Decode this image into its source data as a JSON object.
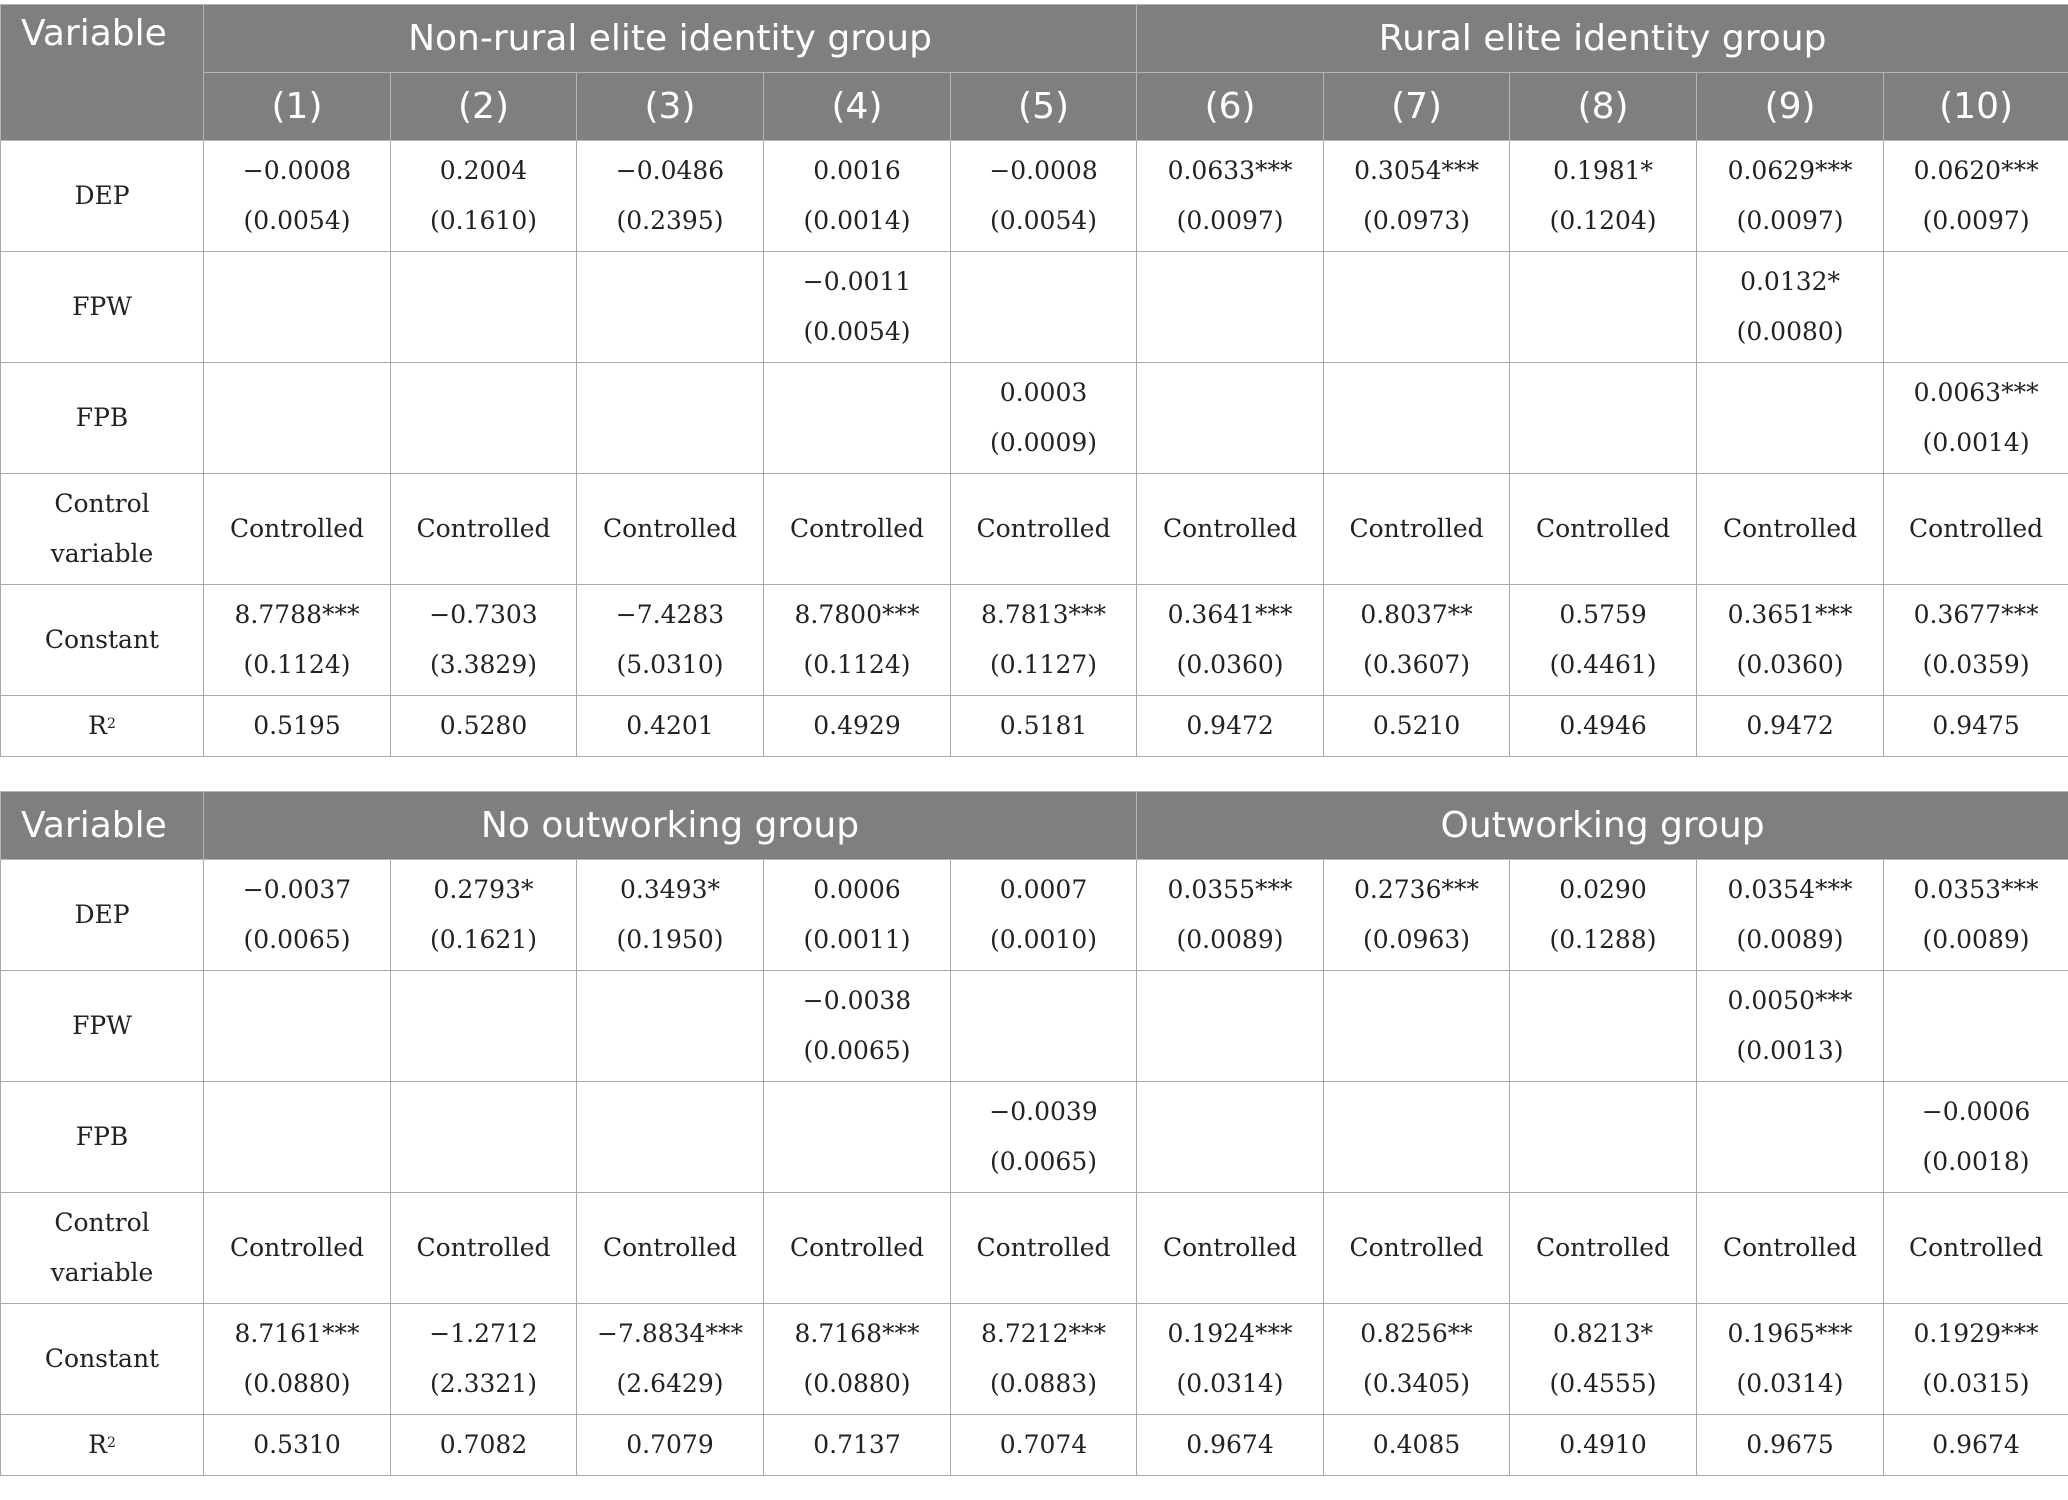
{
  "table1": {
    "header": {
      "variable": "Variable",
      "group_left": "Non-rural elite identity group",
      "group_right": "Rural elite identity group",
      "cols": [
        "(1)",
        "(2)",
        "(3)",
        "(4)",
        "(5)",
        "(6)",
        "(7)",
        "(8)",
        "(9)",
        "(10)"
      ]
    },
    "rows": [
      {
        "label_1": "DEP",
        "label_2": "",
        "c": [
          [
            "−0.0008",
            "(0.0054)"
          ],
          [
            "0.2004",
            "(0.1610)"
          ],
          [
            "−0.0486",
            "(0.2395)"
          ],
          [
            "0.0016",
            "(0.0014)"
          ],
          [
            "−0.0008",
            "(0.0054)"
          ],
          [
            "0.0633***",
            "(0.0097)"
          ],
          [
            "0.3054***",
            "(0.0973)"
          ],
          [
            "0.1981*",
            "(0.1204)"
          ],
          [
            "0.0629***",
            "(0.0097)"
          ],
          [
            "0.0620***",
            "(0.0097)"
          ]
        ]
      },
      {
        "label_1": "FPW",
        "label_2": "",
        "c": [
          [
            "",
            ""
          ],
          [
            "",
            ""
          ],
          [
            "",
            ""
          ],
          [
            "−0.0011",
            "(0.0054)"
          ],
          [
            "",
            ""
          ],
          [
            "",
            ""
          ],
          [
            "",
            ""
          ],
          [
            "",
            ""
          ],
          [
            "0.0132*",
            "(0.0080)"
          ],
          [
            "",
            ""
          ]
        ]
      },
      {
        "label_1": "FPB",
        "label_2": "",
        "c": [
          [
            "",
            ""
          ],
          [
            "",
            ""
          ],
          [
            "",
            ""
          ],
          [
            "",
            ""
          ],
          [
            "0.0003",
            "(0.0009)"
          ],
          [
            "",
            ""
          ],
          [
            "",
            ""
          ],
          [
            "",
            ""
          ],
          [
            "",
            ""
          ],
          [
            "0.0063***",
            "(0.0014)"
          ]
        ]
      },
      {
        "label_1": "Control",
        "label_2": "variable",
        "c": [
          [
            "Controlled",
            ""
          ],
          [
            "Controlled",
            ""
          ],
          [
            "Controlled",
            ""
          ],
          [
            "Controlled",
            ""
          ],
          [
            "Controlled",
            ""
          ],
          [
            "Controlled",
            ""
          ],
          [
            "Controlled",
            ""
          ],
          [
            "Controlled",
            ""
          ],
          [
            "Controlled",
            ""
          ],
          [
            "Controlled",
            ""
          ]
        ]
      },
      {
        "label_1": "Constant",
        "label_2": "",
        "c": [
          [
            "8.7788***",
            "(0.1124)"
          ],
          [
            "−0.7303",
            "(3.3829)"
          ],
          [
            "−7.4283",
            "(5.0310)"
          ],
          [
            "8.7800***",
            "(0.1124)"
          ],
          [
            "8.7813***",
            "(0.1127)"
          ],
          [
            "0.3641***",
            "(0.0360)"
          ],
          [
            "0.8037**",
            "(0.3607)"
          ],
          [
            "0.5759",
            "(0.4461)"
          ],
          [
            "0.3651***",
            "(0.0360)"
          ],
          [
            "0.3677***",
            "(0.0359)"
          ]
        ]
      }
    ],
    "r2": {
      "label": "R",
      "sup": "2",
      "values": [
        "0.5195",
        "0.5280",
        "0.4201",
        "0.4929",
        "0.5181",
        "0.9472",
        "0.5210",
        "0.4946",
        "0.9472",
        "0.9475"
      ]
    }
  },
  "table2": {
    "header": {
      "variable": "Variable",
      "group_left": "No outworking group",
      "group_right": "Outworking group"
    },
    "rows": [
      {
        "label_1": "DEP",
        "label_2": "",
        "c": [
          [
            "−0.0037",
            "(0.0065)"
          ],
          [
            "0.2793*",
            "(0.1621)"
          ],
          [
            "0.3493*",
            "(0.1950)"
          ],
          [
            "0.0006",
            "(0.0011)"
          ],
          [
            "0.0007",
            "(0.0010)"
          ],
          [
            "0.0355***",
            "(0.0089)"
          ],
          [
            "0.2736***",
            "(0.0963)"
          ],
          [
            "0.0290",
            "(0.1288)"
          ],
          [
            "0.0354***",
            "(0.0089)"
          ],
          [
            "0.0353***",
            "(0.0089)"
          ]
        ]
      },
      {
        "label_1": "FPW",
        "label_2": "",
        "c": [
          [
            "",
            ""
          ],
          [
            "",
            ""
          ],
          [
            "",
            ""
          ],
          [
            "−0.0038",
            "(0.0065)"
          ],
          [
            "",
            ""
          ],
          [
            "",
            ""
          ],
          [
            "",
            ""
          ],
          [
            "",
            ""
          ],
          [
            "0.0050***",
            "(0.0013)"
          ],
          [
            "",
            ""
          ]
        ]
      },
      {
        "label_1": "FPB",
        "label_2": "",
        "c": [
          [
            "",
            ""
          ],
          [
            "",
            ""
          ],
          [
            "",
            ""
          ],
          [
            "",
            ""
          ],
          [
            "−0.0039",
            "(0.0065)"
          ],
          [
            "",
            ""
          ],
          [
            "",
            ""
          ],
          [
            "",
            ""
          ],
          [
            "",
            ""
          ],
          [
            "−0.0006",
            "(0.0018)"
          ]
        ]
      },
      {
        "label_1": "Control",
        "label_2": "variable",
        "c": [
          [
            "Controlled",
            ""
          ],
          [
            "Controlled",
            ""
          ],
          [
            "Controlled",
            ""
          ],
          [
            "Controlled",
            ""
          ],
          [
            "Controlled",
            ""
          ],
          [
            "Controlled",
            ""
          ],
          [
            "Controlled",
            ""
          ],
          [
            "Controlled",
            ""
          ],
          [
            "Controlled",
            ""
          ],
          [
            "Controlled",
            ""
          ]
        ]
      },
      {
        "label_1": "Constant",
        "label_2": "",
        "c": [
          [
            "8.7161***",
            "(0.0880)"
          ],
          [
            "−1.2712",
            "(2.3321)"
          ],
          [
            "−7.8834***",
            "(2.6429)"
          ],
          [
            "8.7168***",
            "(0.0880)"
          ],
          [
            "8.7212***",
            "(0.0883)"
          ],
          [
            "0.1924***",
            "(0.0314)"
          ],
          [
            "0.8256**",
            "(0.3405)"
          ],
          [
            "0.8213*",
            "(0.4555)"
          ],
          [
            "0.1965***",
            "(0.0314)"
          ],
          [
            "0.1929***",
            "(0.0315)"
          ]
        ]
      }
    ],
    "r2": {
      "label": "R",
      "sup": "2",
      "values": [
        "0.5310",
        "0.7082",
        "0.7079",
        "0.7137",
        "0.7074",
        "0.9674",
        "0.4085",
        "0.4910",
        "0.9675",
        "0.9674"
      ]
    }
  }
}
